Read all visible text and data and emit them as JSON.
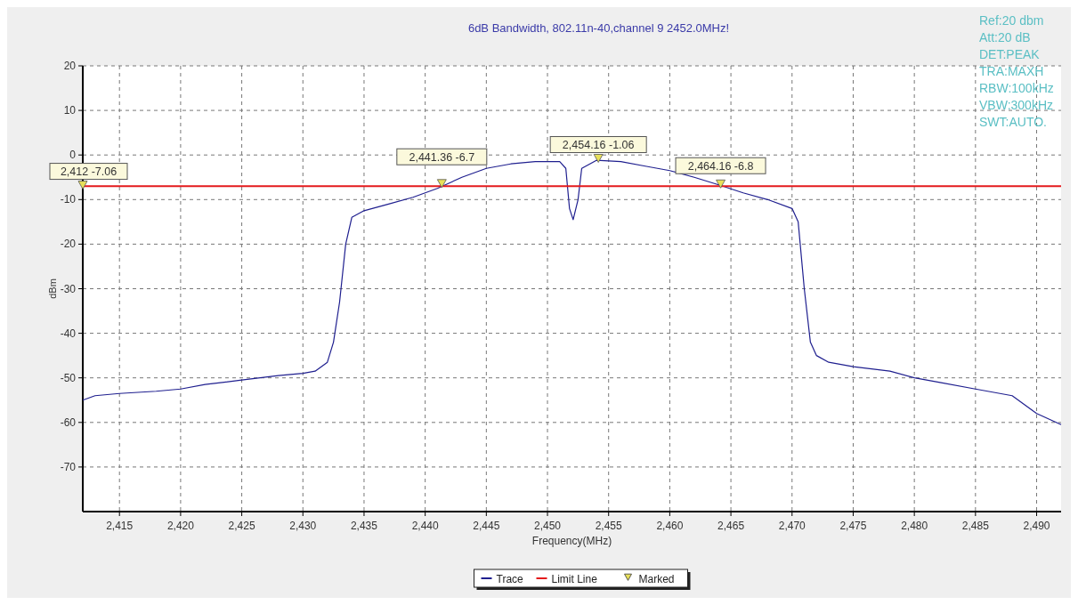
{
  "chart_data": {
    "type": "line",
    "title": "6dB Bandwidth, 802.11n-40,channel 9  2452.0MHz!",
    "xlabel": "Frequency(MHz)",
    "ylabel": "dBm",
    "xlim": [
      2412,
      2492
    ],
    "xticks": [
      {
        "value": 2415,
        "label": "2,415"
      },
      {
        "value": 2420,
        "label": "2,420"
      },
      {
        "value": 2425,
        "label": "2,425"
      },
      {
        "value": 2430,
        "label": "2,430"
      },
      {
        "value": 2435,
        "label": "2,435"
      },
      {
        "value": 2440,
        "label": "2,440"
      },
      {
        "value": 2445,
        "label": "2,445"
      },
      {
        "value": 2450,
        "label": "2,450"
      },
      {
        "value": 2455,
        "label": "2,455"
      },
      {
        "value": 2460,
        "label": "2,460"
      },
      {
        "value": 2465,
        "label": "2,465"
      },
      {
        "value": 2470,
        "label": "2,470"
      },
      {
        "value": 2475,
        "label": "2,475"
      },
      {
        "value": 2480,
        "label": "2,480"
      },
      {
        "value": 2485,
        "label": "2,485"
      },
      {
        "value": 2490,
        "label": "2,490"
      }
    ],
    "ylim": [
      -80,
      20
    ],
    "yticks": [
      20,
      10,
      0,
      -10,
      -20,
      -30,
      -40,
      -50,
      -60,
      -70
    ],
    "grid": true,
    "legend": "bottom",
    "annotations": [
      "Ref:20 dbm",
      "Att:20 dB",
      "DET:PEAK",
      "TRA:MAXH",
      "RBW:100kHz",
      "VBW:300kHz",
      "SWT:AUTO."
    ],
    "series": [
      {
        "name": "Trace",
        "color": "#1f1f8f",
        "marker": "none",
        "x": [
          2412,
          2413,
          2415,
          2418,
          2420,
          2422,
          2425,
          2428,
          2430,
          2431,
          2432,
          2432.5,
          2433,
          2433.5,
          2434,
          2435,
          2437,
          2439,
          2441,
          2443,
          2445,
          2447,
          2449,
          2451,
          2451.5,
          2451.8,
          2452.1,
          2452.5,
          2452.8,
          2454,
          2456,
          2458,
          2460,
          2462,
          2464,
          2466,
          2468,
          2470,
          2470.5,
          2471,
          2471.5,
          2472,
          2473,
          2475,
          2478,
          2480,
          2482,
          2485,
          2488,
          2490,
          2492
        ],
        "values": [
          -55,
          -54,
          -53.5,
          -53,
          -52.5,
          -51.5,
          -50.5,
          -49.5,
          -49,
          -48.5,
          -46.5,
          -42,
          -33,
          -20,
          -14,
          -12.5,
          -11,
          -9.5,
          -7.5,
          -5,
          -3,
          -2,
          -1.5,
          -1.5,
          -3,
          -12,
          -14.5,
          -10,
          -3,
          -1.2,
          -1.5,
          -2.5,
          -3.5,
          -5,
          -6.7,
          -8.5,
          -10,
          -12,
          -15,
          -30,
          -42,
          -45,
          -46.5,
          -47.5,
          -48.5,
          -50,
          -51,
          -52.5,
          -54,
          -58,
          -60.5
        ]
      },
      {
        "name": "Limit Line",
        "type": "line",
        "color": "#e41a1c",
        "marker": "none",
        "line_style": "solid",
        "x": [
          2412,
          2492
        ],
        "values": [
          -7,
          -7
        ]
      },
      {
        "name": "Marked",
        "type": "scatter",
        "color": "#e8e05a",
        "marker": "triangle",
        "x": [
          2412,
          2441.36,
          2454.16,
          2464.16
        ],
        "values": [
          -7.06,
          -6.7,
          -1.06,
          -6.8
        ],
        "value_labels": [
          "2,412 -7.06",
          "2,441.36 -6.7",
          "2,454.16 -1.06",
          "2,464.16 -6.8"
        ]
      }
    ]
  }
}
